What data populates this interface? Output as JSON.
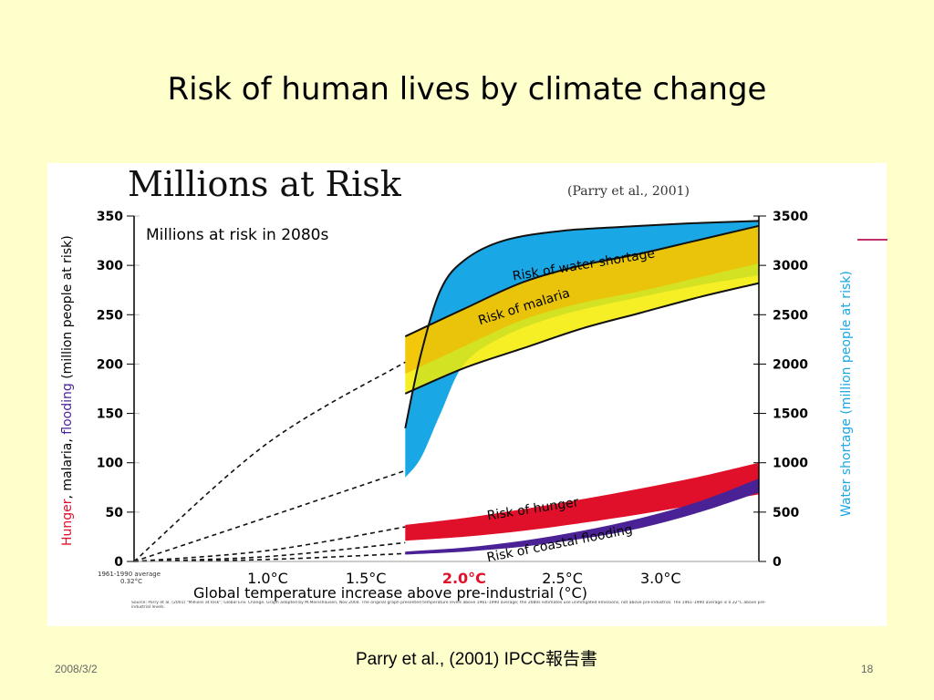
{
  "slide": {
    "title": "Risk of human lives by climate change",
    "caption": "Parry et al., (2001)  IPCC報告書",
    "date": "2008/3/2",
    "page": "18"
  },
  "chart_data": {
    "type": "area",
    "title": "Millions at Risk",
    "subtitle": "(Parry et al., 2001)",
    "inner_title": "Millions at risk in 2080s",
    "xlabel": "Global temperature increase above pre-industrial (°C)",
    "ylabel_left_parts": [
      "Hunger",
      ", malaria, ",
      "flooding",
      " (million people at risk)"
    ],
    "ylabel_right": "Water shortage (million people at risk)",
    "ylim": [
      0,
      350
    ],
    "ylim_right": [
      0,
      3500
    ],
    "xlim": [
      0.32,
      3.5
    ],
    "y_ticks": [
      0,
      50,
      100,
      150,
      200,
      250,
      300,
      350
    ],
    "y_ticks_right": [
      0,
      500,
      1000,
      1500,
      2000,
      2500,
      3000,
      3500
    ],
    "x_ticks": [
      {
        "value": 1.0,
        "label": "1.0°C"
      },
      {
        "value": 1.5,
        "label": "1.5°C"
      },
      {
        "value": 2.0,
        "label": "2.0°C",
        "highlight": true
      },
      {
        "value": 2.5,
        "label": "2.5°C"
      },
      {
        "value": 3.0,
        "label": "3.0°C"
      }
    ],
    "baseline_label": [
      "1961-1990 average",
      "0.32°C"
    ],
    "source_note": "Source: Parry et al. (2001) \"Millions at Risk\"; Global Env. Change. Graph adapted by M.Meinshausen, Nov 2004. The original graph presented temperature levels above 1961-1990 average; the 2080s estimates use unmitigated emissions, not above pre-industrial. The 1961-1990 average is 0.32°C above pre-industrial levels.",
    "series": [
      {
        "name": "Risk of water shortage",
        "color": "#1aa7e6",
        "axis": "right",
        "x": [
          1.7,
          1.78,
          1.88,
          2.0,
          2.2,
          2.5,
          2.9,
          3.2,
          3.5
        ],
        "upper": [
          1350,
          2100,
          2750,
          3050,
          3250,
          3350,
          3400,
          3430,
          3450
        ],
        "lower": [
          850,
          1050,
          1500,
          2000,
          2280,
          2500,
          2680,
          2800,
          2900
        ]
      },
      {
        "name": "Risk of malaria",
        "color": "#f5ec00",
        "axis": "left",
        "x": [
          1.7,
          2.0,
          2.3,
          2.6,
          2.9,
          3.2,
          3.5
        ],
        "upper": [
          228,
          256,
          283,
          300,
          312,
          326,
          340
        ],
        "lower": [
          170,
          196,
          216,
          236,
          252,
          268,
          282
        ]
      },
      {
        "name": "Risk of hunger",
        "color": "#e0102a",
        "axis": "left",
        "x": [
          1.7,
          2.0,
          2.3,
          2.6,
          2.9,
          3.2,
          3.5
        ],
        "upper": [
          37,
          44,
          53,
          63,
          74,
          86,
          100
        ],
        "lower": [
          21,
          25,
          31,
          39,
          48,
          58,
          68
        ]
      },
      {
        "name": "Risk of coastal flooding",
        "color": "#4a2296",
        "axis": "left",
        "x": [
          1.7,
          2.0,
          2.3,
          2.6,
          2.9,
          3.2,
          3.5
        ],
        "upper": [
          10,
          14,
          21,
          31,
          44,
          61,
          84
        ],
        "lower": [
          7,
          10,
          15,
          23,
          34,
          50,
          70
        ]
      }
    ],
    "dashed_extrapolations": [
      {
        "x": [
          0.32,
          1.0,
          1.7
        ],
        "y": [
          0,
          120,
          202
        ]
      },
      {
        "x": [
          0.32,
          1.0,
          1.7
        ],
        "y": [
          0,
          45,
          92
        ]
      },
      {
        "x": [
          0.32,
          1.0,
          1.7
        ],
        "y": [
          0,
          11,
          35
        ]
      },
      {
        "x": [
          0.32,
          1.0,
          1.7
        ],
        "y": [
          0,
          5,
          19
        ]
      },
      {
        "x": [
          0.32,
          1.0,
          1.7
        ],
        "y": [
          0,
          2,
          8
        ]
      }
    ]
  }
}
